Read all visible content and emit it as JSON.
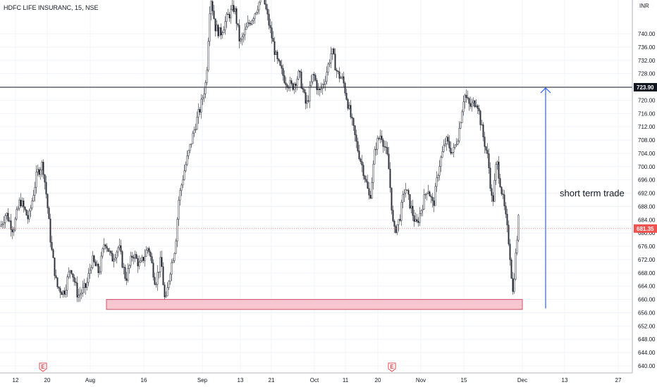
{
  "chart_data": {
    "type": "candlestick",
    "title": "HDFC LIFE INSURANC, 15, NSE",
    "currency": "INR",
    "y_range": [
      638,
      760
    ],
    "y_ticks": [
      640,
      644,
      648,
      652,
      656,
      660,
      664,
      668,
      672,
      676,
      680,
      684,
      688,
      692,
      696,
      700,
      704,
      708,
      712,
      716,
      720,
      724,
      728,
      732,
      736,
      740
    ],
    "x_labels": [
      "12",
      "20",
      "Aug",
      "16",
      "Sep",
      "13",
      "21",
      "Oct",
      "11",
      "20",
      "Nov",
      "15",
      "Dec",
      "13",
      "27"
    ],
    "price_path": [
      [
        0,
        682
      ],
      [
        8,
        686
      ],
      [
        18,
        681
      ],
      [
        28,
        690
      ],
      [
        40,
        684
      ],
      [
        52,
        698
      ],
      [
        60,
        701
      ],
      [
        66,
        690
      ],
      [
        72,
        676
      ],
      [
        80,
        664
      ],
      [
        90,
        662
      ],
      [
        100,
        670
      ],
      [
        110,
        661
      ],
      [
        122,
        664
      ],
      [
        130,
        672
      ],
      [
        140,
        668
      ],
      [
        148,
        678
      ],
      [
        158,
        672
      ],
      [
        168,
        676
      ],
      [
        178,
        666
      ],
      [
        188,
        674
      ],
      [
        198,
        670
      ],
      [
        210,
        676
      ],
      [
        220,
        665
      ],
      [
        228,
        672
      ],
      [
        234,
        658
      ],
      [
        240,
        668
      ],
      [
        248,
        676
      ],
      [
        253,
        690
      ],
      [
        260,
        698
      ],
      [
        268,
        705
      ],
      [
        276,
        712
      ],
      [
        284,
        718
      ],
      [
        292,
        726
      ],
      [
        298,
        752
      ],
      [
        305,
        742
      ],
      [
        312,
        740
      ],
      [
        322,
        745
      ],
      [
        332,
        748
      ],
      [
        340,
        737
      ],
      [
        350,
        742
      ],
      [
        360,
        746
      ],
      [
        372,
        752
      ],
      [
        382,
        742
      ],
      [
        392,
        732
      ],
      [
        404,
        726
      ],
      [
        414,
        724
      ],
      [
        424,
        728
      ],
      [
        434,
        718
      ],
      [
        444,
        728
      ],
      [
        452,
        722
      ],
      [
        460,
        726
      ],
      [
        470,
        735
      ],
      [
        478,
        728
      ],
      [
        486,
        726
      ],
      [
        496,
        716
      ],
      [
        506,
        706
      ],
      [
        516,
        698
      ],
      [
        524,
        690
      ],
      [
        532,
        706
      ],
      [
        540,
        710
      ],
      [
        550,
        702
      ],
      [
        558,
        680
      ],
      [
        566,
        684
      ],
      [
        574,
        694
      ],
      [
        582,
        688
      ],
      [
        590,
        682
      ],
      [
        598,
        688
      ],
      [
        606,
        694
      ],
      [
        614,
        688
      ],
      [
        622,
        700
      ],
      [
        632,
        708
      ],
      [
        642,
        704
      ],
      [
        650,
        710
      ],
      [
        658,
        722
      ],
      [
        666,
        718
      ],
      [
        676,
        720
      ],
      [
        684,
        710
      ],
      [
        692,
        702
      ],
      [
        698,
        688
      ],
      [
        704,
        702
      ],
      [
        710,
        694
      ],
      [
        716,
        686
      ],
      [
        722,
        676
      ],
      [
        727,
        662
      ],
      [
        732,
        676
      ],
      [
        735,
        684
      ]
    ],
    "horizontal_line": {
      "price": 723.9,
      "label": "723.90"
    },
    "current_price": {
      "price": 681.35,
      "label": "681.35"
    },
    "support_zone": {
      "from": 657,
      "to": 660
    },
    "annotation": "short term trade",
    "event_marker": "E",
    "grid": true
  }
}
